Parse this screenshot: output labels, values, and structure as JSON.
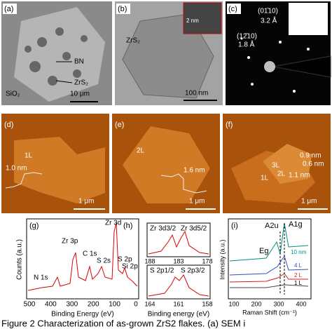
{
  "panels": {
    "a": {
      "label": "(a)",
      "bn": "BN",
      "zrs2": "ZrS₂",
      "sio2": "SiO₂",
      "scale": "10 μm"
    },
    "b": {
      "label": "(b)",
      "zrs2": "ZrS₂",
      "inset_scale": "2 nm",
      "scale": "100 nm"
    },
    "c": {
      "label": "(c)",
      "plane1": "(01̄10)",
      "d1": "3.2 Å",
      "plane2": "(12̄10)",
      "d2": "1.8 Å"
    },
    "d": {
      "label": "(d)",
      "layer": "1L",
      "height": "1.0 nm",
      "scale": "1 μm"
    },
    "e": {
      "label": "(e)",
      "layer": "2L",
      "height": "1.6 nm",
      "scale": "1 μm"
    },
    "f": {
      "label": "(f)",
      "h1": "0.9 nm",
      "h2": "0.6 nm",
      "l3": "3L",
      "l2": "2L",
      "h3": "1.1 nm",
      "l1": "1L",
      "scale": "1 μm"
    },
    "g": {
      "label": "(g)",
      "ylabel": "Counts (a.u.)",
      "xlabel": "Binding Energy (eV)",
      "xticks": [
        "500",
        "400",
        "300",
        "200",
        "100",
        "0"
      ],
      "peaks": {
        "zr3d": "Zr 3d",
        "zr3p": "Zr 3p",
        "c1s": "C 1s",
        "s2s": "S 2s",
        "s2p": "S 2p",
        "si2p": "Si 2p",
        "n1s": "N 1s"
      }
    },
    "h": {
      "label": "(h)",
      "zr32": "Zr 3d3/2",
      "zr52": "Zr 3d5/2",
      "xticks_top": [
        "188",
        "183",
        "178"
      ],
      "s12": "S 2p1/2",
      "s32": "S 2p3/2",
      "xticks_bottom": [
        "164",
        "161",
        "158"
      ],
      "xlabel": "Binding energy (eV)"
    },
    "i": {
      "label": "(i)",
      "a2u": "A2u",
      "a1g": "A1g",
      "eg": "Eg",
      "t10": "10 nm",
      "t4": "4 L",
      "t2": "2 L",
      "t1": "1 L",
      "ylabel": "Intensity (a.u.)",
      "xlabel": "Raman Shift (cm⁻¹)",
      "xticks": [
        "100",
        "200",
        "300",
        "400"
      ]
    }
  },
  "caption": "Figure 2 Characterization of as-grown ZrS2 flakes. (a) SEM i"
}
